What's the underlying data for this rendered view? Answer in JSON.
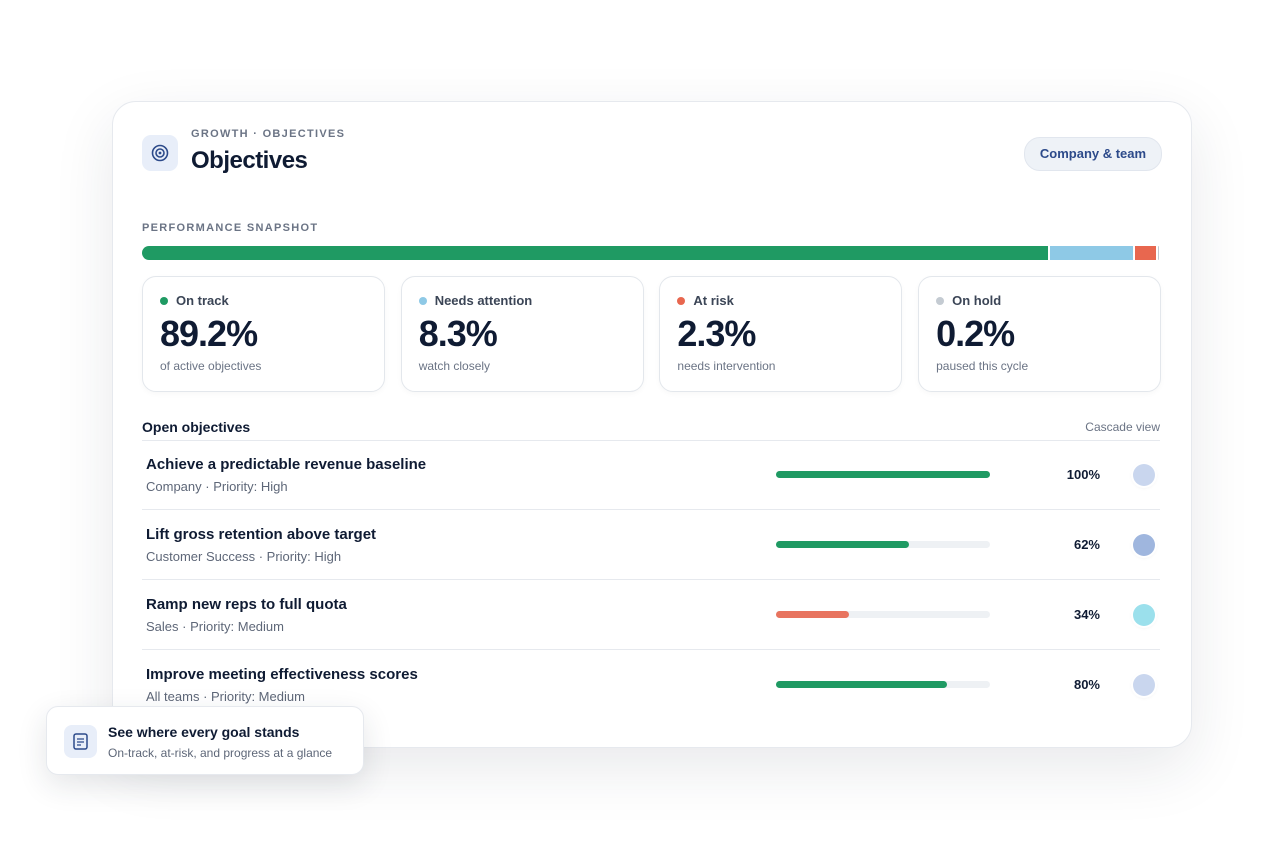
{
  "header": {
    "eyebrow": "GROWTH · OBJECTIVES",
    "title": "Objectives",
    "button": "Company & team"
  },
  "snapshot": {
    "label": "PERFORMANCE SNAPSHOT",
    "items": [
      {
        "name": "On track",
        "value": 89.2,
        "value_label": "89.2%",
        "note": "of active objectives",
        "color": "#1f9a63"
      },
      {
        "name": "Needs attention",
        "value": 8.3,
        "value_label": "8.3%",
        "note": "watch closely",
        "color": "#8ec9e6"
      },
      {
        "name": "At risk",
        "value": 2.3,
        "value_label": "2.3%",
        "note": "needs intervention",
        "color": "#e8674f"
      },
      {
        "name": "On hold",
        "value": 0.2,
        "value_label": "0.2%",
        "note": "paused this cycle",
        "color": "#c4cbd2"
      }
    ]
  },
  "objectives": {
    "title": "Open objectives",
    "link": "Cascade view",
    "rows": [
      {
        "title": "Achieve a predictable revenue baseline",
        "meta": "Company · Priority: High",
        "progress": 100,
        "progress_label": "100%",
        "color": "#1f9a63",
        "avatar": "#c9d6ee"
      },
      {
        "title": "Lift gross retention above target",
        "meta": "Customer Success · Priority: High",
        "progress": 62,
        "progress_label": "62%",
        "color": "#1f9a63",
        "avatar": "#9fb6de"
      },
      {
        "title": "Ramp new reps to full quota",
        "meta": "Sales · Priority: Medium",
        "progress": 34,
        "progress_label": "34%",
        "color": "#e8745f",
        "avatar": "#9be0ec"
      },
      {
        "title": "Improve meeting effectiveness scores",
        "meta": "All teams · Priority: Medium",
        "progress": 80,
        "progress_label": "80%",
        "color": "#1f9a63",
        "avatar": "#c9d6ee"
      }
    ]
  },
  "callout": {
    "title": "See where every goal stands",
    "subtitle": "On-track, at-risk, and progress at a glance"
  }
}
